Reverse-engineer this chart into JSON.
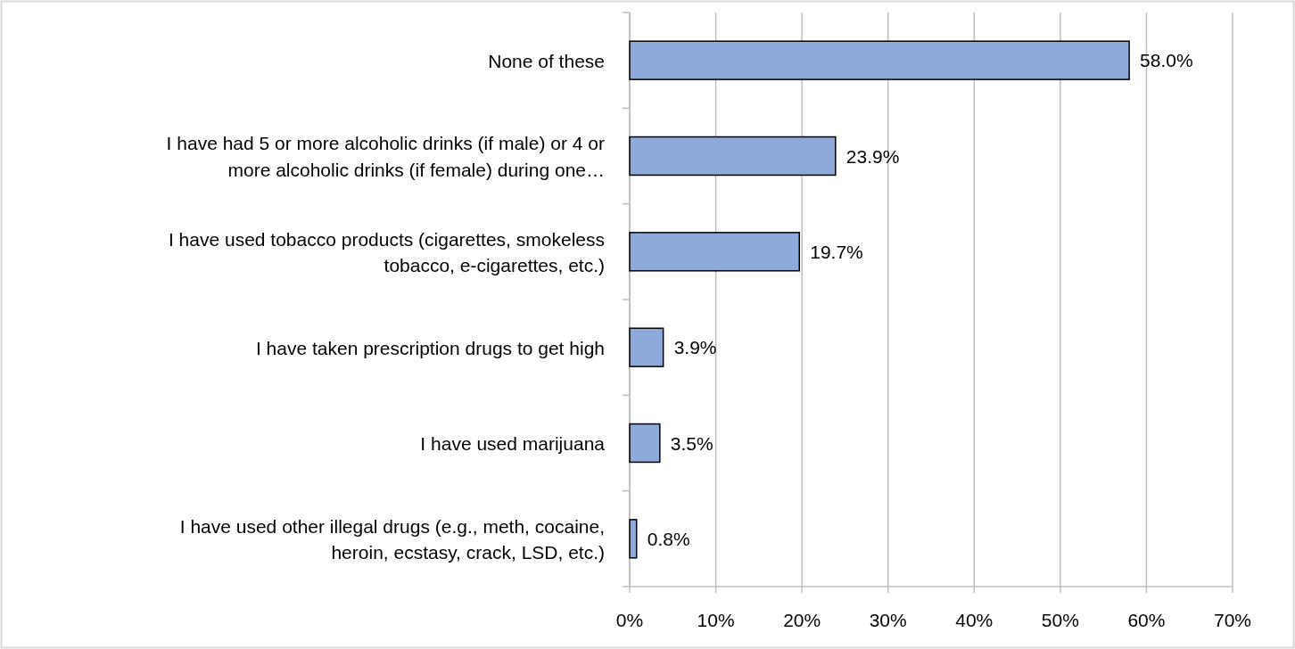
{
  "chart_data": {
    "type": "bar",
    "orientation": "horizontal",
    "categories": [
      "None of these",
      "I have had 5 or more alcoholic drinks (if male) or 4 or more alcoholic drinks (if female) during one…",
      "I have used tobacco products (cigarettes, smokeless tobacco, e-cigarettes, etc.)",
      "I have taken prescription drugs to get high",
      "I have used marijuana",
      "I have used other illegal drugs (e.g., meth, cocaine, heroin, ecstasy, crack, LSD, etc.)"
    ],
    "values": [
      58.0,
      23.9,
      19.7,
      3.9,
      3.5,
      0.8
    ],
    "value_labels": [
      "58.0%",
      "23.9%",
      "19.7%",
      "3.9%",
      "3.5%",
      "0.8%"
    ],
    "color": "#8eaadb",
    "xlim": [
      0,
      70
    ],
    "xticks": [
      {
        "value": 0,
        "label": "0%"
      },
      {
        "value": 10,
        "label": "10%"
      },
      {
        "value": 20,
        "label": "20%"
      },
      {
        "value": 30,
        "label": "30%"
      },
      {
        "value": 40,
        "label": "40%"
      },
      {
        "value": 50,
        "label": "50%"
      },
      {
        "value": 60,
        "label": "60%"
      },
      {
        "value": 70,
        "label": "70%"
      }
    ],
    "grid": "x"
  }
}
